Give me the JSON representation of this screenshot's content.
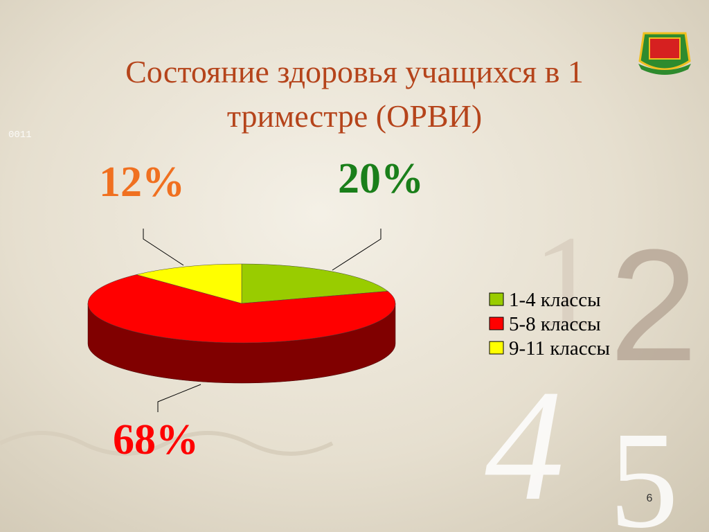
{
  "chart_data": {
    "type": "pie3d",
    "title": "Состояние здоровья учащихся в 1 триместре (ОРВИ)",
    "categories": [
      "1-4 классы",
      "5-8 классы",
      "9-11 классы"
    ],
    "values": [
      20,
      68,
      12
    ],
    "value_labels": [
      "20%",
      "68%",
      "12%"
    ],
    "colors": [
      "#99cc00",
      "#ff0000",
      "#ffff00"
    ],
    "side_colors": [
      "#5c7a00",
      "#800000",
      "#999900"
    ],
    "label_colors": [
      "#1a7f1a",
      "#ff0000",
      "#f07020"
    ],
    "legend": "right"
  },
  "slide_number": "6",
  "decor_text": [
    "0011",
    "1",
    "2",
    "4",
    "5"
  ]
}
